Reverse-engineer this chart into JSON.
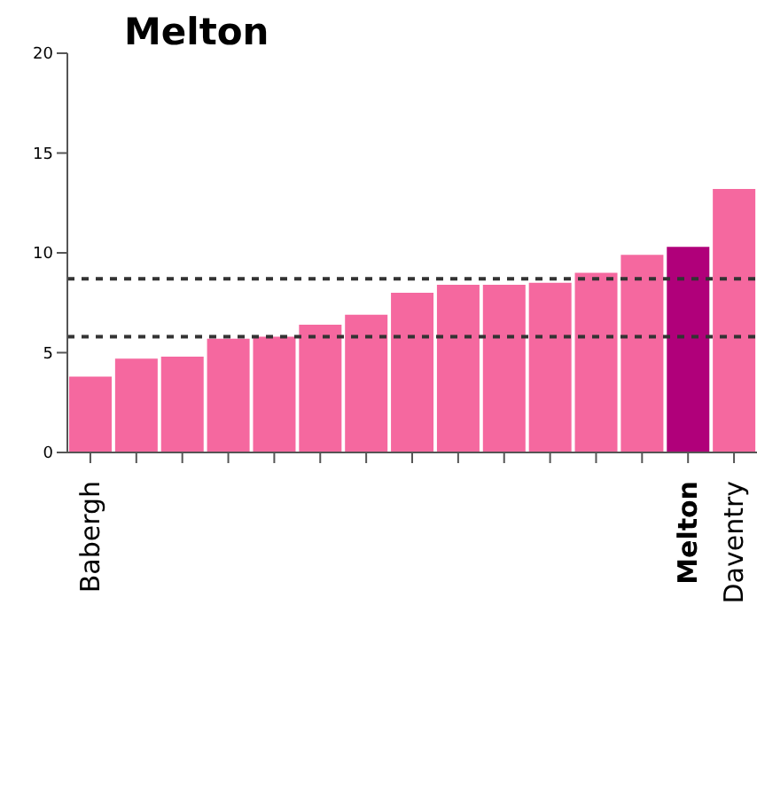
{
  "chart_data": {
    "type": "bar",
    "title": "Melton",
    "categories": [
      "Babergh",
      null,
      null,
      null,
      null,
      null,
      null,
      null,
      null,
      null,
      null,
      null,
      null,
      "Melton",
      "Daventry"
    ],
    "values": [
      3.8,
      4.7,
      4.8,
      5.7,
      5.8,
      6.4,
      6.9,
      8.0,
      8.4,
      8.4,
      8.5,
      9.0,
      9.9,
      10.3,
      13.2
    ],
    "colors": [
      "#f5689f",
      "#f5689f",
      "#f5689f",
      "#f5689f",
      "#f5689f",
      "#f5689f",
      "#f5689f",
      "#f5689f",
      "#f5689f",
      "#f5689f",
      "#f5689f",
      "#f5689f",
      "#f5689f",
      "#b0007a",
      "#f5689f"
    ],
    "ylim": [
      0,
      20
    ],
    "yticks": [
      0,
      5,
      10,
      15,
      20
    ],
    "grid": false,
    "legend": false,
    "ref_lines": [
      {
        "axis": "y",
        "value": 8.7,
        "color": "#333333",
        "line_style": "dashed"
      },
      {
        "axis": "y",
        "value": 5.8,
        "color": "#333333",
        "line_style": "dashed"
      }
    ]
  }
}
